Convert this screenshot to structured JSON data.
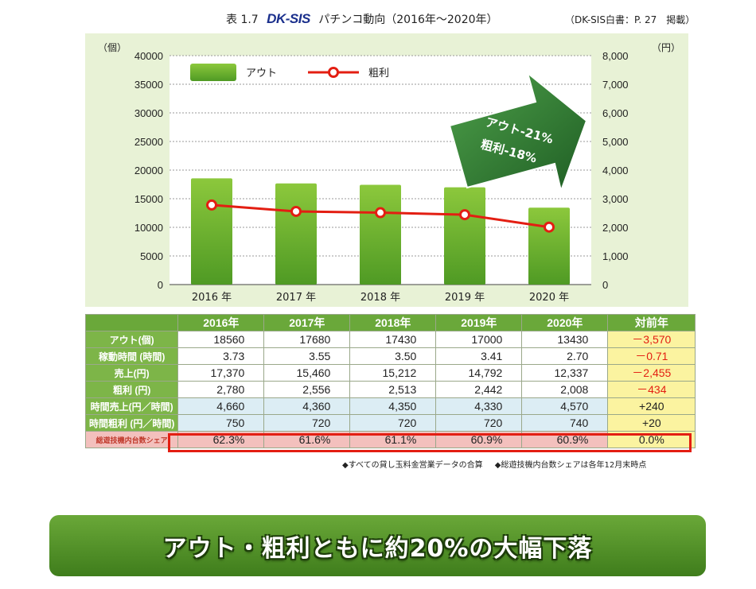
{
  "header": {
    "fig_label": "表 1.7",
    "logo": "DK-SIS",
    "title": "パチンコ動向（2016年～2020年）",
    "source": "（DK-SIS白書：P. 27　掲載）"
  },
  "chart_data": {
    "type": "bar",
    "categories": [
      "2016 年",
      "2017 年",
      "2018 年",
      "2019 年",
      "2020 年"
    ],
    "series": [
      {
        "name": "アウト",
        "type": "bar",
        "axis": "left",
        "values": [
          18560,
          17680,
          17430,
          17000,
          13430
        ],
        "color": "#6aaf2e"
      },
      {
        "name": "粗利",
        "type": "line",
        "axis": "right",
        "values": [
          2780,
          2556,
          2513,
          2442,
          2008
        ],
        "color": "#e31e12"
      }
    ],
    "yleft": {
      "unit": "（個）",
      "lim": [
        0,
        40000
      ],
      "ticks": [
        "0",
        "5000",
        "10000",
        "15000",
        "20000",
        "25000",
        "30000",
        "35000",
        "40000"
      ]
    },
    "yright": {
      "unit": "（円）",
      "lim": [
        0,
        8000
      ],
      "ticks": [
        "0",
        "1,000",
        "2,000",
        "3,000",
        "4,000",
        "5,000",
        "6,000",
        "7,000",
        "8,000"
      ]
    },
    "grid": true,
    "legend": "top-left",
    "annotation": {
      "lines": [
        "アウト-21%",
        "粗利-18%"
      ]
    }
  },
  "table": {
    "headers": [
      "",
      "2016年",
      "2017年",
      "2018年",
      "2019年",
      "2020年",
      "対前年"
    ],
    "rows": [
      {
        "label": "アウト(個)",
        "cells": [
          "18560",
          "17680",
          "17430",
          "17000",
          "13430"
        ],
        "diff": "－3,570",
        "style": "white"
      },
      {
        "label": "稼動時間 (時間)",
        "cells": [
          "3.73",
          "3.55",
          "3.50",
          "3.41",
          "2.70"
        ],
        "diff": "－0.71",
        "style": "white"
      },
      {
        "label": "売上(円)",
        "cells": [
          "17,370",
          "15,460",
          "15,212",
          "14,792",
          "12,337"
        ],
        "diff": "－2,455",
        "style": "white"
      },
      {
        "label": "粗利 (円)",
        "cells": [
          "2,780",
          "2,556",
          "2,513",
          "2,442",
          "2,008"
        ],
        "diff": "－434",
        "style": "white"
      },
      {
        "label": "時間売上(円／時間)",
        "cells": [
          "4,660",
          "4,360",
          "4,350",
          "4,330",
          "4,570"
        ],
        "diff": "+240",
        "style": "blue"
      },
      {
        "label": "時間粗利 (円／時間)",
        "cells": [
          "750",
          "720",
          "720",
          "720",
          "740"
        ],
        "diff": "+20",
        "style": "blue"
      },
      {
        "label": "総遊技機内台数シェア",
        "cells": [
          "62.3%",
          "61.6%",
          "61.1%",
          "60.9%",
          "60.9%"
        ],
        "diff": "0.0%",
        "style": "share"
      }
    ]
  },
  "notes": [
    "◆すべての貸し玉料金営業データの合算",
    "◆総遊技機内台数シェアは各年12月末時点"
  ],
  "banner": "アウト・粗利ともに約20%の大幅下落",
  "colors": {
    "bar": "#6aaf2e",
    "line": "#e31e12",
    "header_green": "#6aa83a",
    "banner": "#4e8f26",
    "arrow": "#2f7a2f"
  }
}
